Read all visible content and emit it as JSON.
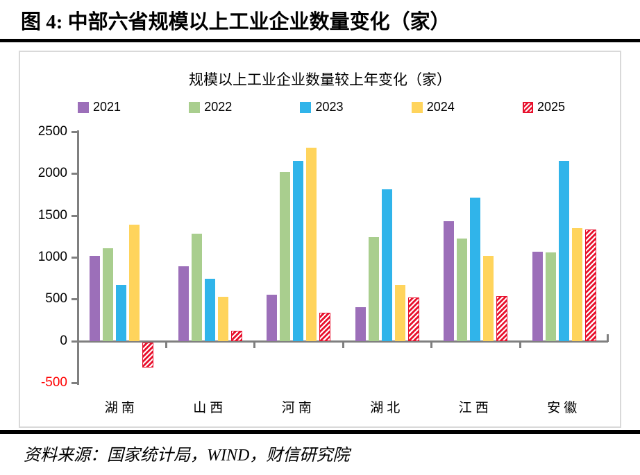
{
  "heading": {
    "text": "图 4:  中部六省规模以上工业企业数量变化（家）"
  },
  "source": {
    "text": "资料来源：国家统计局，WIND，财信研究院"
  },
  "colors": {
    "purple_2021": "#9C6FB9",
    "green_2022": "#A9CE8E",
    "blue_2023": "#30B4EA",
    "yellow_2024": "#FFD45C",
    "red_2025": "#E8112D",
    "axis_gray": "#7F7F7F",
    "panel_border": "#D9D9D9",
    "negative_label_red": "#FF0000",
    "rule_black": "#000000"
  },
  "chart_data": {
    "type": "bar",
    "title": "规模以上工业企业数量较上年变化（家）",
    "categories": [
      "湖南",
      "山西",
      "河南",
      "湖北",
      "江西",
      "安徽"
    ],
    "series": [
      {
        "name": "2021",
        "color": "#9C6FB9",
        "pattern": "solid",
        "values": [
          1020,
          890,
          550,
          400,
          1430,
          1070
        ]
      },
      {
        "name": "2022",
        "color": "#A9CE8E",
        "pattern": "solid",
        "values": [
          1110,
          1280,
          2020,
          1240,
          1220,
          1060
        ]
      },
      {
        "name": "2023",
        "color": "#30B4EA",
        "pattern": "solid",
        "values": [
          670,
          740,
          2150,
          1810,
          1710,
          2150
        ]
      },
      {
        "name": "2024",
        "color": "#FFD45C",
        "pattern": "solid",
        "values": [
          1390,
          530,
          2310,
          670,
          1020,
          1350
        ]
      },
      {
        "name": "2025",
        "color": "#E8112D",
        "pattern": "hatch",
        "values": [
          -300,
          120,
          340,
          520,
          540,
          1330
        ]
      }
    ],
    "ylim": [
      -500,
      2500
    ],
    "ytick_interval": 500,
    "yticks": [
      2500,
      2000,
      1500,
      1000,
      500,
      0,
      -500
    ],
    "grid": false,
    "legend_position": "top",
    "xlabel": "",
    "ylabel": ""
  }
}
